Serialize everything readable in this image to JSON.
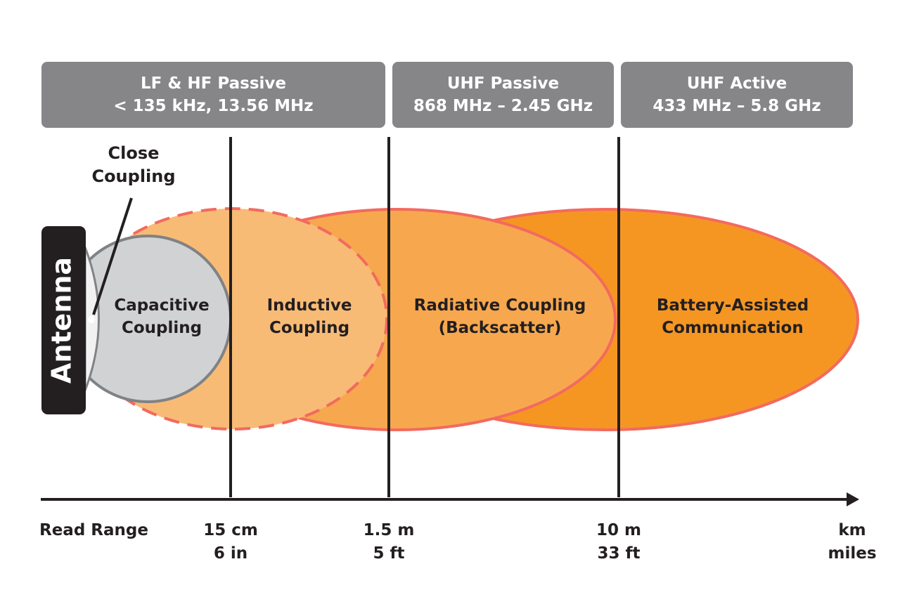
{
  "bands": [
    {
      "line1": "LF & HF Passive",
      "line2": "< 135 kHz, 13.56 MHz"
    },
    {
      "line1": "UHF Passive",
      "line2": "868 MHz – 2.45 GHz"
    },
    {
      "line1": "UHF Active",
      "line2": "433 MHz – 5.8 GHz"
    }
  ],
  "antenna_label": "Antenna",
  "close_coupling": {
    "line1": "Close",
    "line2": "Coupling"
  },
  "regions": {
    "capacitive": {
      "line1": "Capacitive",
      "line2": "Coupling"
    },
    "inductive": {
      "line1": "Inductive",
      "line2": "Coupling"
    },
    "radiative": {
      "line1": "Radiative Coupling",
      "line2": "(Backscatter)"
    },
    "battery": {
      "line1": "Battery-Assisted",
      "line2": "Communication"
    }
  },
  "axis": {
    "title": "Read Range",
    "ticks": [
      {
        "metric": "15 cm",
        "imperial": "6 in"
      },
      {
        "metric": "1.5 m",
        "imperial": "5 ft"
      },
      {
        "metric": "10 m",
        "imperial": "33 ft"
      },
      {
        "metric": "km",
        "imperial": "miles"
      }
    ]
  },
  "colors": {
    "band_fill": "#868689",
    "antenna_fill": "#231f20",
    "capacitive_fill": "#d1d2d4",
    "capacitive_stroke": "#808285",
    "inductive_fill": "#f8bb76",
    "radiative_fill": "#f7a84e",
    "battery_fill": "#f59623",
    "zone_stroke": "#f26a5f",
    "line_color": "#231f20"
  }
}
